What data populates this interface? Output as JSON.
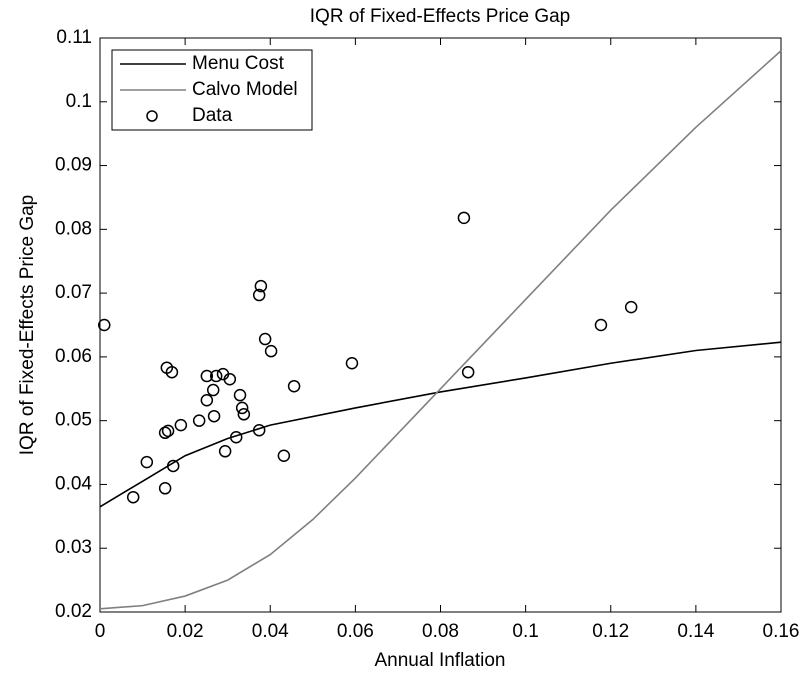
{
  "chart_data": {
    "type": "line-scatter",
    "title": "IQR of Fixed-Effects Price Gap",
    "x_label": "Annual Inflation",
    "y_label": "IQR of Fixed-Effects Price Gap",
    "xlim": [
      0,
      0.16
    ],
    "ylim": [
      0.02,
      0.11
    ],
    "xticks": [
      0,
      0.02,
      0.04,
      0.06,
      0.08,
      0.1,
      0.12,
      0.14,
      0.16
    ],
    "yticks": [
      0.02,
      0.03,
      0.04,
      0.05,
      0.06,
      0.07,
      0.08,
      0.09,
      0.1,
      0.11
    ],
    "legend": "upper-left",
    "series": [
      {
        "name": "Menu Cost",
        "style": "line",
        "color": "#000000",
        "x": [
          0,
          0.01,
          0.02,
          0.03,
          0.04,
          0.06,
          0.08,
          0.1,
          0.12,
          0.14,
          0.16
        ],
        "values": [
          0.0365,
          0.0405,
          0.0445,
          0.0472,
          0.0493,
          0.052,
          0.0545,
          0.0567,
          0.059,
          0.061,
          0.0623
        ]
      },
      {
        "name": "Calvo Model",
        "style": "line",
        "color": "#808080",
        "x": [
          0,
          0.01,
          0.02,
          0.03,
          0.04,
          0.05,
          0.06,
          0.07,
          0.08,
          0.1,
          0.12,
          0.14,
          0.16
        ],
        "values": [
          0.0205,
          0.021,
          0.0225,
          0.025,
          0.029,
          0.0345,
          0.041,
          0.048,
          0.055,
          0.069,
          0.083,
          0.096,
          0.108
        ]
      },
      {
        "name": "Data",
        "style": "scatter",
        "color": "#000000",
        "x": [
          0.001,
          0.0078,
          0.011,
          0.0153,
          0.0157,
          0.0153,
          0.016,
          0.0169,
          0.0172,
          0.019,
          0.0233,
          0.0251,
          0.0251,
          0.0266,
          0.0268,
          0.0273,
          0.0289,
          0.0294,
          0.0305,
          0.032,
          0.0329,
          0.0334,
          0.0338,
          0.0374,
          0.0374,
          0.0378,
          0.0388,
          0.0402,
          0.0432,
          0.0456,
          0.0592,
          0.0855,
          0.0865,
          0.1177,
          0.1248
        ],
        "values": [
          0.065,
          0.038,
          0.0435,
          0.0394,
          0.0583,
          0.0481,
          0.0484,
          0.0576,
          0.0429,
          0.0493,
          0.05,
          0.057,
          0.0532,
          0.0548,
          0.0507,
          0.057,
          0.0573,
          0.0452,
          0.0565,
          0.0474,
          0.054,
          0.052,
          0.051,
          0.0485,
          0.0697,
          0.0711,
          0.0628,
          0.0609,
          0.0445,
          0.0554,
          0.059,
          0.0818,
          0.0576,
          0.065,
          0.0678
        ]
      }
    ]
  }
}
